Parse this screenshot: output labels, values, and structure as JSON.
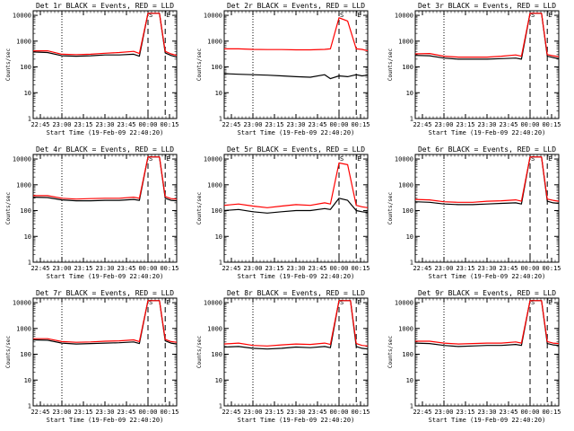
{
  "figure": {
    "xlabel": "Start Time (19-Feb-09 22:40:20)",
    "ylabel": "Counts/sec",
    "x_tick_labels": [
      "22:45",
      "23:00",
      "23:15",
      "23:30",
      "23:45",
      "00:00",
      "00:15"
    ],
    "y_tick_labels": [
      "1",
      "10",
      "100",
      "1000",
      "10000"
    ],
    "markers": [
      "S",
      "E"
    ],
    "colors": {
      "events": "#000000",
      "lld": "#ff0000",
      "background": "#ffffff"
    }
  },
  "chart_data": [
    {
      "type": "line",
      "title": "Det 1r BLACK = Events, RED = LLD",
      "xlim_minutes": [
        0,
        100
      ],
      "ylim": [
        1,
        15000
      ],
      "y_scale": "log",
      "dotted_line_minute": 20,
      "dashed_line_minutes": [
        80,
        92
      ],
      "series": [
        {
          "name": "Events",
          "color": "#000000",
          "x_minutes": [
            0,
            10,
            20,
            30,
            40,
            50,
            60,
            70,
            74,
            80,
            88,
            92,
            96,
            100
          ],
          "y": [
            380,
            360,
            270,
            260,
            270,
            290,
            290,
            310,
            260,
            12000,
            12000,
            350,
            280,
            240
          ]
        },
        {
          "name": "LLD",
          "color": "#ff0000",
          "x_minutes": [
            0,
            10,
            20,
            30,
            40,
            50,
            60,
            70,
            74,
            80,
            88,
            92,
            96,
            100
          ],
          "y": [
            420,
            420,
            310,
            300,
            310,
            340,
            360,
            400,
            330,
            12000,
            12000,
            400,
            320,
            280
          ]
        }
      ]
    },
    {
      "type": "line",
      "title": "Det 2r BLACK = Events, RED = LLD",
      "xlim_minutes": [
        0,
        100
      ],
      "ylim": [
        1,
        15000
      ],
      "y_scale": "log",
      "dotted_line_minute": 20,
      "dashed_line_minutes": [
        80,
        92
      ],
      "series": [
        {
          "name": "Events",
          "color": "#000000",
          "x_minutes": [
            0,
            10,
            20,
            30,
            40,
            50,
            60,
            70,
            74,
            80,
            86,
            92,
            96,
            100
          ],
          "y": [
            55,
            52,
            50,
            48,
            45,
            42,
            40,
            50,
            35,
            45,
            42,
            50,
            45,
            48
          ]
        },
        {
          "name": "LLD",
          "color": "#ff0000",
          "x_minutes": [
            0,
            10,
            20,
            30,
            40,
            50,
            60,
            70,
            74,
            80,
            86,
            92,
            96,
            100
          ],
          "y": [
            500,
            500,
            480,
            470,
            470,
            460,
            460,
            480,
            500,
            8000,
            6000,
            500,
            480,
            420
          ]
        }
      ]
    },
    {
      "type": "line",
      "title": "Det 3r BLACK = Events, RED = LLD",
      "xlim_minutes": [
        0,
        100
      ],
      "ylim": [
        1,
        15000
      ],
      "y_scale": "log",
      "dotted_line_minute": 20,
      "dashed_line_minutes": [
        80,
        92
      ],
      "series": [
        {
          "name": "Events",
          "color": "#000000",
          "x_minutes": [
            0,
            10,
            20,
            30,
            40,
            50,
            60,
            70,
            74,
            80,
            88,
            92,
            96,
            100
          ],
          "y": [
            280,
            270,
            220,
            200,
            200,
            200,
            210,
            220,
            200,
            12000,
            12000,
            260,
            230,
            210
          ]
        },
        {
          "name": "LLD",
          "color": "#ff0000",
          "x_minutes": [
            0,
            10,
            20,
            30,
            40,
            50,
            60,
            70,
            74,
            80,
            88,
            92,
            96,
            100
          ],
          "y": [
            320,
            330,
            260,
            240,
            240,
            240,
            260,
            290,
            260,
            12000,
            12000,
            300,
            270,
            250
          ]
        }
      ]
    },
    {
      "type": "line",
      "title": "Det 4r BLACK = Events, RED = LLD",
      "xlim_minutes": [
        0,
        100
      ],
      "ylim": [
        1,
        15000
      ],
      "y_scale": "log",
      "dotted_line_minute": 20,
      "dashed_line_minutes": [
        80,
        92
      ],
      "series": [
        {
          "name": "Events",
          "color": "#000000",
          "x_minutes": [
            0,
            10,
            20,
            30,
            40,
            50,
            60,
            70,
            74,
            80,
            88,
            92,
            96,
            100
          ],
          "y": [
            330,
            320,
            260,
            240,
            240,
            250,
            250,
            270,
            250,
            12000,
            12000,
            300,
            250,
            240
          ]
        },
        {
          "name": "LLD",
          "color": "#ff0000",
          "x_minutes": [
            0,
            10,
            20,
            30,
            40,
            50,
            60,
            70,
            74,
            80,
            88,
            92,
            96,
            100
          ],
          "y": [
            380,
            380,
            300,
            280,
            290,
            300,
            300,
            330,
            300,
            12000,
            12000,
            350,
            290,
            280
          ]
        }
      ]
    },
    {
      "type": "line",
      "title": "Det 5r BLACK = Events, RED = LLD",
      "xlim_minutes": [
        0,
        100
      ],
      "ylim": [
        1,
        15000
      ],
      "y_scale": "log",
      "dotted_line_minute": 20,
      "dashed_line_minutes": [
        80,
        92
      ],
      "series": [
        {
          "name": "Events",
          "color": "#000000",
          "x_minutes": [
            0,
            10,
            20,
            30,
            40,
            50,
            60,
            70,
            74,
            80,
            86,
            92,
            96,
            100
          ],
          "y": [
            100,
            110,
            90,
            80,
            90,
            100,
            100,
            120,
            110,
            300,
            250,
            100,
            90,
            85
          ]
        },
        {
          "name": "LLD",
          "color": "#ff0000",
          "x_minutes": [
            0,
            10,
            20,
            30,
            40,
            50,
            60,
            70,
            74,
            80,
            86,
            92,
            96,
            100
          ],
          "y": [
            160,
            180,
            150,
            130,
            150,
            170,
            160,
            200,
            180,
            7000,
            6000,
            160,
            140,
            130
          ]
        }
      ]
    },
    {
      "type": "line",
      "title": "Det 6r BLACK = Events, RED = LLD",
      "xlim_minutes": [
        0,
        100
      ],
      "ylim": [
        1,
        15000
      ],
      "y_scale": "log",
      "dotted_line_minute": 20,
      "dashed_line_minutes": [
        80,
        92
      ],
      "series": [
        {
          "name": "Events",
          "color": "#000000",
          "x_minutes": [
            0,
            10,
            20,
            30,
            40,
            50,
            60,
            70,
            74,
            80,
            88,
            92,
            96,
            100
          ],
          "y": [
            220,
            210,
            180,
            170,
            170,
            180,
            190,
            200,
            180,
            12000,
            12000,
            230,
            200,
            190
          ]
        },
        {
          "name": "LLD",
          "color": "#ff0000",
          "x_minutes": [
            0,
            10,
            20,
            30,
            40,
            50,
            60,
            70,
            74,
            80,
            88,
            92,
            96,
            100
          ],
          "y": [
            270,
            260,
            220,
            210,
            210,
            230,
            240,
            260,
            230,
            12000,
            12000,
            280,
            250,
            230
          ]
        }
      ]
    },
    {
      "type": "line",
      "title": "Det 7r BLACK = Events, RED = LLD",
      "xlim_minutes": [
        0,
        100
      ],
      "ylim": [
        1,
        15000
      ],
      "y_scale": "log",
      "dotted_line_minute": 20,
      "dashed_line_minutes": [
        80,
        92
      ],
      "series": [
        {
          "name": "Events",
          "color": "#000000",
          "x_minutes": [
            0,
            10,
            20,
            30,
            40,
            50,
            60,
            70,
            74,
            80,
            88,
            92,
            96,
            100
          ],
          "y": [
            360,
            350,
            270,
            250,
            260,
            270,
            280,
            300,
            260,
            12000,
            12000,
            330,
            270,
            250
          ]
        },
        {
          "name": "LLD",
          "color": "#ff0000",
          "x_minutes": [
            0,
            10,
            20,
            30,
            40,
            50,
            60,
            70,
            74,
            80,
            88,
            92,
            96,
            100
          ],
          "y": [
            400,
            400,
            310,
            290,
            300,
            320,
            330,
            360,
            310,
            12000,
            12000,
            380,
            310,
            290
          ]
        }
      ]
    },
    {
      "type": "line",
      "title": "Det 8r BLACK = Events, RED = LLD",
      "xlim_minutes": [
        0,
        100
      ],
      "ylim": [
        1,
        15000
      ],
      "y_scale": "log",
      "dotted_line_minute": 20,
      "dashed_line_minutes": [
        80,
        92
      ],
      "series": [
        {
          "name": "Events",
          "color": "#000000",
          "x_minutes": [
            0,
            10,
            20,
            30,
            40,
            50,
            60,
            70,
            74,
            80,
            88,
            92,
            96,
            100
          ],
          "y": [
            190,
            200,
            170,
            160,
            170,
            190,
            180,
            200,
            180,
            12000,
            12000,
            200,
            170,
            160
          ]
        },
        {
          "name": "LLD",
          "color": "#ff0000",
          "x_minutes": [
            0,
            10,
            20,
            30,
            40,
            50,
            60,
            70,
            74,
            80,
            88,
            92,
            96,
            100
          ],
          "y": [
            250,
            270,
            220,
            210,
            230,
            250,
            240,
            270,
            240,
            12000,
            12000,
            260,
            220,
            210
          ]
        }
      ]
    },
    {
      "type": "line",
      "title": "Det 9r BLACK = Events, RED = LLD",
      "xlim_minutes": [
        0,
        100
      ],
      "ylim": [
        1,
        15000
      ],
      "y_scale": "log",
      "dotted_line_minute": 20,
      "dashed_line_minutes": [
        80,
        92
      ],
      "series": [
        {
          "name": "Events",
          "color": "#000000",
          "x_minutes": [
            0,
            10,
            20,
            30,
            40,
            50,
            60,
            70,
            74,
            80,
            88,
            92,
            96,
            100
          ],
          "y": [
            270,
            260,
            220,
            200,
            210,
            220,
            220,
            240,
            220,
            12000,
            12000,
            260,
            230,
            220
          ]
        },
        {
          "name": "LLD",
          "color": "#ff0000",
          "x_minutes": [
            0,
            10,
            20,
            30,
            40,
            50,
            60,
            70,
            74,
            80,
            88,
            92,
            96,
            100
          ],
          "y": [
            320,
            320,
            270,
            250,
            260,
            270,
            270,
            300,
            270,
            12000,
            12000,
            310,
            270,
            260
          ]
        }
      ]
    }
  ]
}
